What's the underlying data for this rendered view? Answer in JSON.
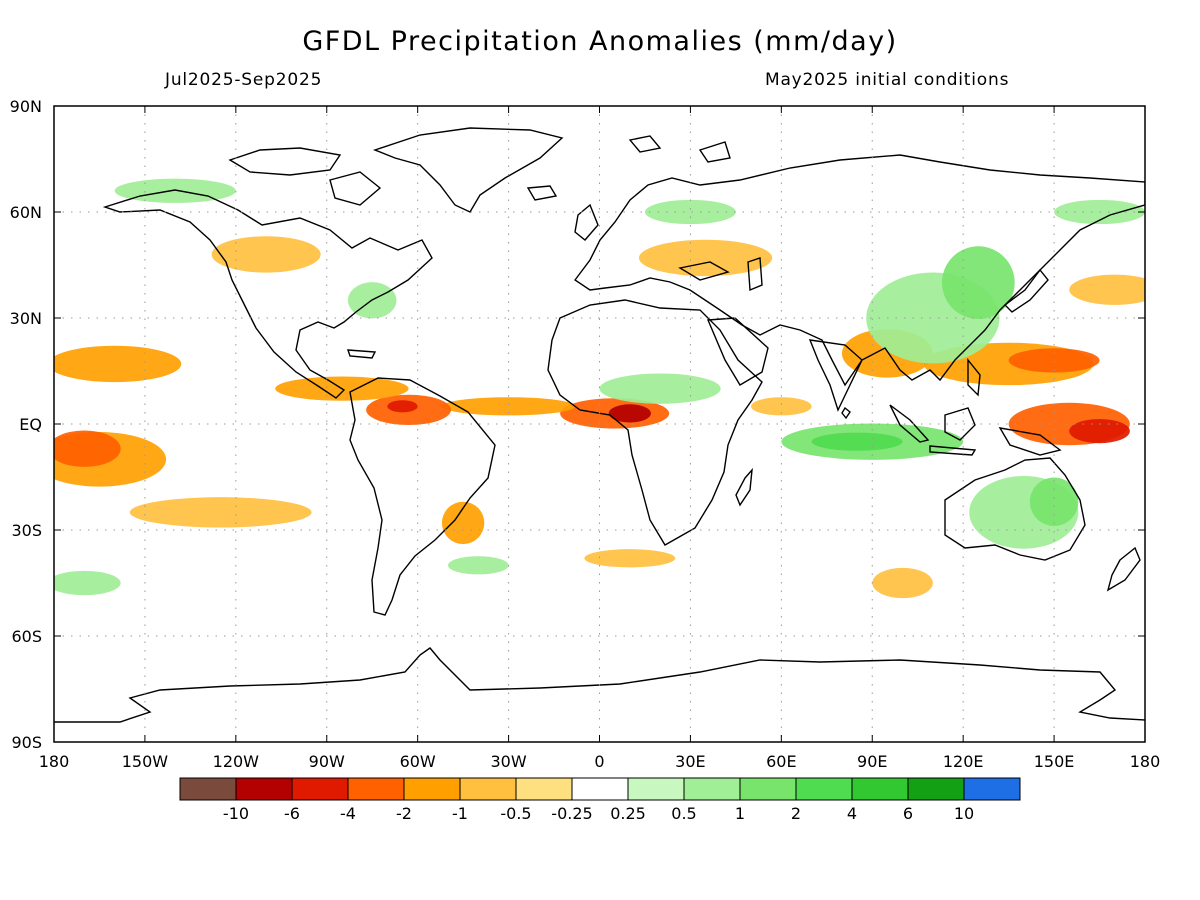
{
  "title": "GFDL Precipitation Anomalies (mm/day)",
  "subtitle_left": "Jul2025-Sep2025",
  "subtitle_right": "May2025 initial conditions",
  "map": {
    "projection": "cylindrical equidistant",
    "lon_range": [
      -180,
      180
    ],
    "lat_range": [
      -90,
      90
    ],
    "grid": "dotted",
    "x_ticks": [
      {
        "lon": -180,
        "label": "180"
      },
      {
        "lon": -150,
        "label": "150W"
      },
      {
        "lon": -120,
        "label": "120W"
      },
      {
        "lon": -90,
        "label": "90W"
      },
      {
        "lon": -60,
        "label": "60W"
      },
      {
        "lon": -30,
        "label": "30W"
      },
      {
        "lon": 0,
        "label": "0"
      },
      {
        "lon": 30,
        "label": "30E"
      },
      {
        "lon": 60,
        "label": "60E"
      },
      {
        "lon": 90,
        "label": "90E"
      },
      {
        "lon": 120,
        "label": "120E"
      },
      {
        "lon": 150,
        "label": "150E"
      },
      {
        "lon": 180,
        "label": "180"
      }
    ],
    "y_ticks": [
      {
        "lat": 90,
        "label": "90N"
      },
      {
        "lat": 60,
        "label": "60N"
      },
      {
        "lat": 30,
        "label": "30N"
      },
      {
        "lat": 0,
        "label": "EQ"
      },
      {
        "lat": -30,
        "label": "30S"
      },
      {
        "lat": -60,
        "label": "60S"
      },
      {
        "lat": -90,
        "label": "90S"
      }
    ]
  },
  "colorbar": {
    "colors": [
      "#7a4b3c",
      "#b30000",
      "#e01a00",
      "#ff6000",
      "#ffa000",
      "#ffc040",
      "#ffe080",
      "#ffffff",
      "#c8f7c0",
      "#a0ee96",
      "#78e46c",
      "#50dc50",
      "#32c832",
      "#14a014",
      "#1e6ee6"
    ],
    "labels": [
      "-10",
      "-6",
      "-4",
      "-2",
      "-1",
      "-0.5",
      "-0.25",
      "0.25",
      "0.5",
      "1",
      "2",
      "4",
      "6",
      "10"
    ]
  },
  "anomaly_regions": [
    {
      "lon": 5,
      "lat": 3,
      "rx": 18,
      "ry": 5,
      "level": -2
    },
    {
      "lon": 10,
      "lat": 3,
      "rx": 7,
      "ry": 3,
      "level": -6
    },
    {
      "lon": -30,
      "lat": 5,
      "rx": 22,
      "ry": 3,
      "level": -1
    },
    {
      "lon": -63,
      "lat": 4,
      "rx": 14,
      "ry": 5,
      "level": -2
    },
    {
      "lon": -65,
      "lat": 5,
      "rx": 5,
      "ry": 2,
      "level": -4
    },
    {
      "lon": -85,
      "lat": 10,
      "rx": 22,
      "ry": 4,
      "level": -1
    },
    {
      "lon": -160,
      "lat": 17,
      "rx": 22,
      "ry": 6,
      "level": -1
    },
    {
      "lon": -165,
      "lat": -10,
      "rx": 22,
      "ry": 9,
      "level": -1
    },
    {
      "lon": -170,
      "lat": -7,
      "rx": 12,
      "ry": 6,
      "level": -2
    },
    {
      "lon": -125,
      "lat": -25,
      "rx": 30,
      "ry": 5,
      "level": -0.5
    },
    {
      "lon": -45,
      "lat": -28,
      "rx": 7,
      "ry": 7,
      "level": -1
    },
    {
      "lon": -110,
      "lat": 48,
      "rx": 18,
      "ry": 6,
      "level": -0.5
    },
    {
      "lon": 35,
      "lat": 47,
      "rx": 22,
      "ry": 6,
      "level": -0.5
    },
    {
      "lon": 135,
      "lat": 17,
      "rx": 28,
      "ry": 7,
      "level": -1
    },
    {
      "lon": 150,
      "lat": 18,
      "rx": 15,
      "ry": 4,
      "level": -2
    },
    {
      "lon": 155,
      "lat": 0,
      "rx": 20,
      "ry": 7,
      "level": -2
    },
    {
      "lon": 165,
      "lat": -2,
      "rx": 10,
      "ry": 4,
      "level": -4
    },
    {
      "lon": 95,
      "lat": 20,
      "rx": 15,
      "ry": 8,
      "level": -1
    },
    {
      "lon": 60,
      "lat": 5,
      "rx": 10,
      "ry": 3,
      "level": -0.5
    },
    {
      "lon": 10,
      "lat": -38,
      "rx": 15,
      "ry": 3,
      "level": -0.5
    },
    {
      "lon": 100,
      "lat": -45,
      "rx": 10,
      "ry": 5,
      "level": -0.5
    },
    {
      "lon": 170,
      "lat": 38,
      "rx": 15,
      "ry": 5,
      "level": -0.5
    },
    {
      "lon": 90,
      "lat": -5,
      "rx": 30,
      "ry": 6,
      "level": 1
    },
    {
      "lon": 85,
      "lat": -5,
      "rx": 15,
      "ry": 3,
      "level": 2
    },
    {
      "lon": 20,
      "lat": 10,
      "rx": 20,
      "ry": 5,
      "level": 0.5
    },
    {
      "lon": 110,
      "lat": 30,
      "rx": 22,
      "ry": 15,
      "level": 0.5
    },
    {
      "lon": 125,
      "lat": 40,
      "rx": 12,
      "ry": 12,
      "level": 1
    },
    {
      "lon": 140,
      "lat": -25,
      "rx": 18,
      "ry": 12,
      "level": 0.5
    },
    {
      "lon": 150,
      "lat": -22,
      "rx": 8,
      "ry": 8,
      "level": 1
    },
    {
      "lon": -140,
      "lat": 66,
      "rx": 20,
      "ry": 4,
      "level": 0.5
    },
    {
      "lon": -75,
      "lat": 35,
      "rx": 8,
      "ry": 6,
      "level": 0.5
    },
    {
      "lon": -40,
      "lat": -40,
      "rx": 10,
      "ry": 3,
      "level": 0.5
    },
    {
      "lon": -170,
      "lat": -45,
      "rx": 12,
      "ry": 4,
      "level": 0.5
    },
    {
      "lon": 165,
      "lat": 60,
      "rx": 15,
      "ry": 4,
      "level": 0.5
    },
    {
      "lon": 30,
      "lat": 60,
      "rx": 15,
      "ry": 4,
      "level": 0.5
    }
  ]
}
